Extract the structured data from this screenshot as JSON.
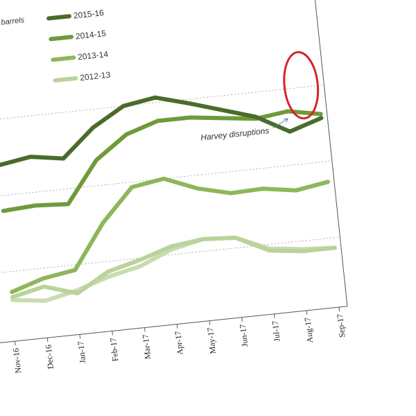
{
  "chart_data": {
    "type": "line",
    "unit_label": "ousand barrels",
    "x": [
      "Nov-16",
      "Dec-16",
      "Jan-17",
      "Feb-17",
      "Mar-17",
      "Apr-17",
      "May-17",
      "Jun-17",
      "Jul-17",
      "Aug-17",
      "Sep-17"
    ],
    "series": [
      {
        "name": "2015-16",
        "color": "#4a6b2a",
        "values": [
          155,
          160,
          155,
          182,
          200,
          205,
          196,
          186,
          176,
          158,
          168
        ]
      },
      {
        "name": "2014-15",
        "color": "#6f9a3a",
        "values": [
          110,
          112,
          110,
          150,
          172,
          182,
          182,
          178,
          174,
          178,
          172
        ]
      },
      {
        "name": "2013-14",
        "color": "#8fb65a",
        "values": [
          30,
          40,
          45,
          88,
          120,
          125,
          112,
          104,
          105,
          100,
          105
        ]
      },
      {
        "name": "2012-13",
        "color": "#b9d39a",
        "values": [
          25,
          32,
          22,
          40,
          48,
          58,
          62,
          60,
          44,
          40,
          40
        ]
      },
      {
        "name": "",
        "color": "#c8dcae",
        "values": [
          22,
          18,
          25,
          35,
          42,
          55,
          62,
          60,
          46,
          42,
          40
        ]
      }
    ],
    "legend_position": "top-left",
    "annotations": [
      {
        "text": "Harvey disruptions",
        "at": "Aug-17"
      }
    ],
    "grid": true
  }
}
